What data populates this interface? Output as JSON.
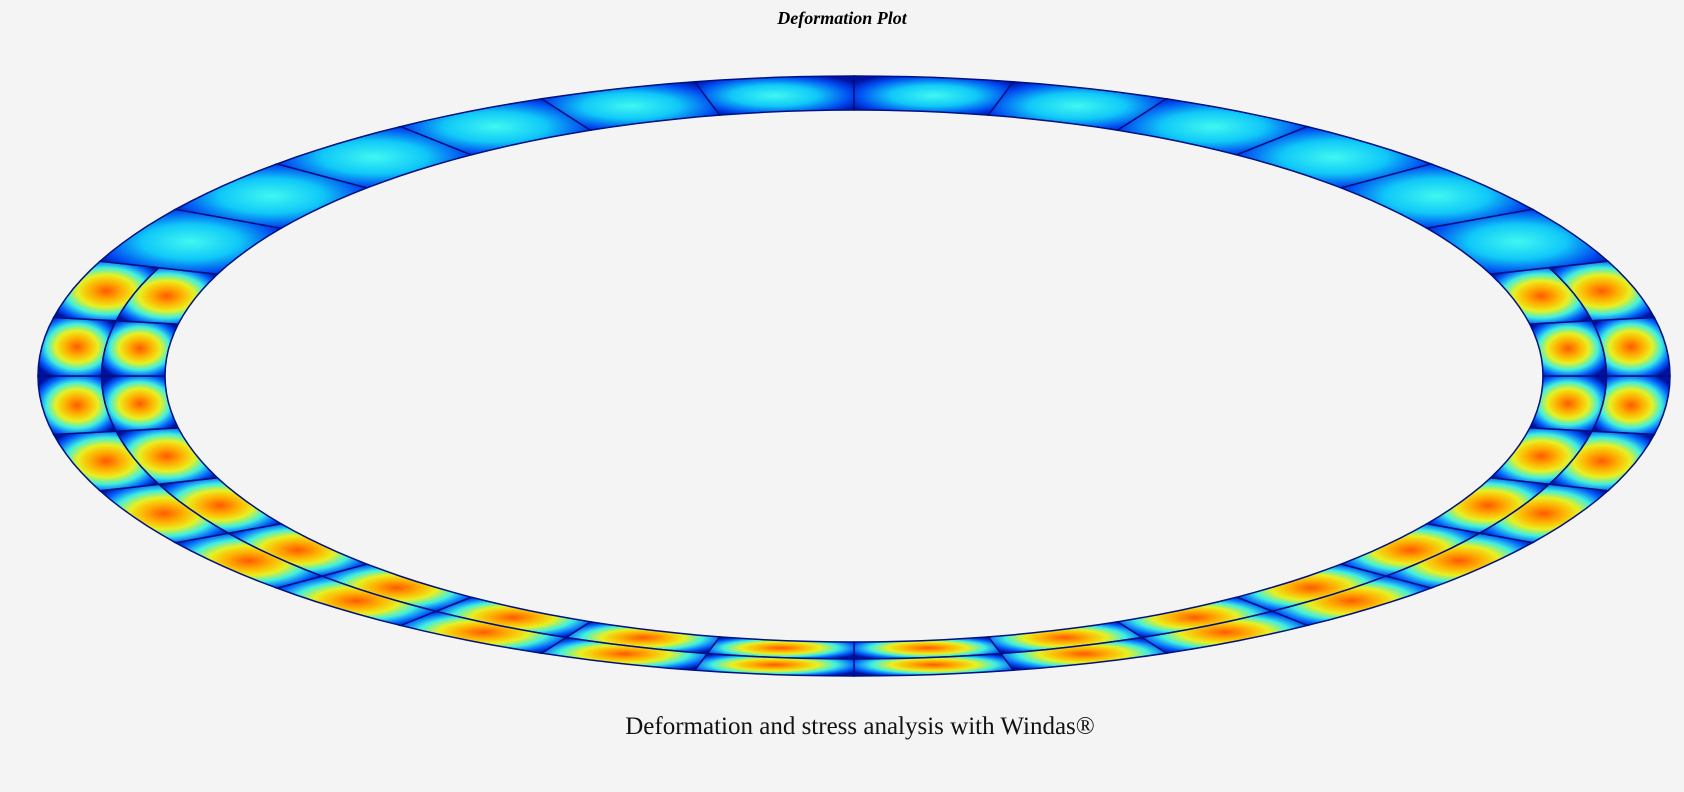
{
  "header": {
    "title": "Deformation Plot"
  },
  "footer": {
    "caption": "Deformation and stress analysis with Windas®"
  }
}
